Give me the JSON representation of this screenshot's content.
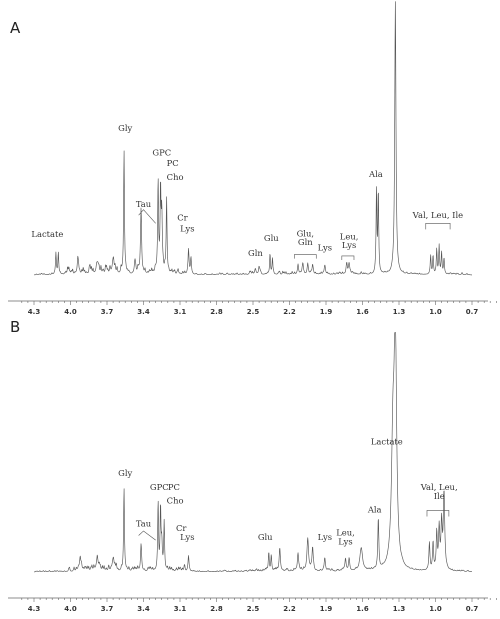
{
  "chart_data": [
    {
      "type": "line",
      "panel": "A",
      "xaxis": {
        "reversed": true,
        "ticks": [
          "4.3",
          "4.0",
          "3.7",
          "3.4",
          "3.1",
          "2.8",
          "2.5",
          "2.2",
          "1.9",
          "1.6",
          "1.3",
          "1.0",
          "0.7"
        ]
      },
      "peaks": [
        {
          "ppm": 1.33,
          "h": 1.0,
          "w": 0.006,
          "label": "Lactate"
        },
        {
          "ppm": 1.47,
          "h": 0.3,
          "w": 0.004
        },
        {
          "ppm": 1.485,
          "h": 0.31,
          "w": 0.004,
          "label": "Ala"
        },
        {
          "ppm": 3.56,
          "h": 0.46,
          "w": 0.004,
          "label": "Gly"
        },
        {
          "ppm": 3.28,
          "h": 0.34,
          "w": 0.004,
          "label": "GPC"
        },
        {
          "ppm": 3.26,
          "h": 0.3,
          "w": 0.004,
          "label": "PC"
        },
        {
          "ppm": 3.21,
          "h": 0.27,
          "w": 0.004,
          "label": "Cho"
        },
        {
          "ppm": 3.42,
          "h": 0.23,
          "w": 0.005
        },
        {
          "ppm": 3.25,
          "h": 0.21,
          "w": 0.005
        },
        {
          "ppm": 3.03,
          "h": 0.09,
          "w": 0.005,
          "label": "Cr"
        },
        {
          "ppm": 3.01,
          "h": 0.06,
          "w": 0.004
        },
        {
          "ppm": 4.12,
          "h": 0.08,
          "w": 0.004
        },
        {
          "ppm": 4.1,
          "h": 0.08,
          "w": 0.004
        },
        {
          "ppm": 3.94,
          "h": 0.05,
          "w": 0.006
        },
        {
          "ppm": 3.78,
          "h": 0.04,
          "w": 0.01
        },
        {
          "ppm": 3.65,
          "h": 0.045,
          "w": 0.01
        },
        {
          "ppm": 3.47,
          "h": 0.05,
          "w": 0.006
        },
        {
          "ppm": 2.48,
          "h": 0.02,
          "w": 0.006
        },
        {
          "ppm": 2.45,
          "h": 0.025,
          "w": 0.005
        },
        {
          "ppm": 2.36,
          "h": 0.07,
          "w": 0.004
        },
        {
          "ppm": 2.34,
          "h": 0.06,
          "w": 0.004
        },
        {
          "ppm": 2.13,
          "h": 0.035,
          "w": 0.005
        },
        {
          "ppm": 2.09,
          "h": 0.04,
          "w": 0.005
        },
        {
          "ppm": 2.05,
          "h": 0.04,
          "w": 0.005
        },
        {
          "ppm": 2.01,
          "h": 0.03,
          "w": 0.005
        },
        {
          "ppm": 1.91,
          "h": 0.03,
          "w": 0.006
        },
        {
          "ppm": 1.73,
          "h": 0.035,
          "w": 0.006
        },
        {
          "ppm": 1.71,
          "h": 0.04,
          "w": 0.006
        },
        {
          "ppm": 1.04,
          "h": 0.07,
          "w": 0.004
        },
        {
          "ppm": 1.02,
          "h": 0.07,
          "w": 0.004
        },
        {
          "ppm": 0.99,
          "h": 0.09,
          "w": 0.004
        },
        {
          "ppm": 0.97,
          "h": 0.1,
          "w": 0.004
        },
        {
          "ppm": 0.95,
          "h": 0.08,
          "w": 0.004
        },
        {
          "ppm": 0.93,
          "h": 0.06,
          "w": 0.004
        }
      ],
      "labels": [
        {
          "text": "Lactate",
          "ppm": 1.31,
          "h": 1.03
        },
        {
          "text": "Gly",
          "ppm": 3.55,
          "h": 0.53
        },
        {
          "text": "GPC",
          "ppm": 3.25,
          "h": 0.44
        },
        {
          "text": "PC",
          "ppm": 3.16,
          "h": 0.4
        },
        {
          "text": "Cho",
          "ppm": 3.14,
          "h": 0.35
        },
        {
          "text": "Tau",
          "ppm": 3.4,
          "h": 0.25
        },
        {
          "text": "Cr",
          "ppm": 3.08,
          "h": 0.2
        },
        {
          "text": "Lys",
          "ppm": 3.04,
          "h": 0.16
        },
        {
          "text": "Lactate",
          "ppm": 4.19,
          "h": 0.14
        },
        {
          "text": "Gln",
          "ppm": 2.48,
          "h": 0.07
        },
        {
          "text": "Glu",
          "ppm": 2.35,
          "h": 0.125
        },
        {
          "text": "Glu,",
          "ppm": 2.07,
          "h": 0.142
        },
        {
          "text": "Gln",
          "ppm": 2.07,
          "h": 0.11
        },
        {
          "text": "Lys",
          "ppm": 1.91,
          "h": 0.09
        },
        {
          "text": "Leu,",
          "ppm": 1.71,
          "h": 0.13
        },
        {
          "text": "Lys",
          "ppm": 1.71,
          "h": 0.1
        },
        {
          "text": "Ala",
          "ppm": 1.49,
          "h": 0.36
        },
        {
          "text": "Val, Leu, Ile",
          "ppm": 0.98,
          "h": 0.21
        }
      ]
    },
    {
      "type": "line",
      "panel": "B",
      "xaxis": {
        "reversed": true,
        "ticks": [
          "4.3",
          "4.0",
          "3.7",
          "3.4",
          "3.1",
          "2.8",
          "2.5",
          "2.2",
          "1.9",
          "1.6",
          "1.3",
          "1.0",
          "0.7"
        ]
      },
      "peaks": [
        {
          "ppm": 1.33,
          "h": 1.0,
          "w": 0.012
        },
        {
          "ppm": 1.35,
          "h": 0.52,
          "w": 0.014
        },
        {
          "ppm": 0.93,
          "h": 0.34,
          "w": 0.007
        },
        {
          "ppm": 0.95,
          "h": 0.2,
          "w": 0.006
        },
        {
          "ppm": 0.97,
          "h": 0.18,
          "w": 0.006
        },
        {
          "ppm": 0.99,
          "h": 0.16,
          "w": 0.005
        },
        {
          "ppm": 1.02,
          "h": 0.12,
          "w": 0.005
        },
        {
          "ppm": 1.05,
          "h": 0.12,
          "w": 0.005
        },
        {
          "ppm": 1.47,
          "h": 0.22,
          "w": 0.005,
          "label": "Ala"
        },
        {
          "ppm": 1.61,
          "h": 0.1,
          "w": 0.012
        },
        {
          "ppm": 3.56,
          "h": 0.36,
          "w": 0.004,
          "label": "Gly"
        },
        {
          "ppm": 3.28,
          "h": 0.3,
          "w": 0.004
        },
        {
          "ppm": 3.26,
          "h": 0.27,
          "w": 0.004
        },
        {
          "ppm": 3.23,
          "h": 0.21,
          "w": 0.004
        },
        {
          "ppm": 3.42,
          "h": 0.12,
          "w": 0.005
        },
        {
          "ppm": 3.25,
          "h": 0.12,
          "w": 0.005
        },
        {
          "ppm": 3.03,
          "h": 0.07,
          "w": 0.005
        },
        {
          "ppm": 3.65,
          "h": 0.05,
          "w": 0.01
        },
        {
          "ppm": 3.78,
          "h": 0.045,
          "w": 0.012
        },
        {
          "ppm": 3.92,
          "h": 0.04,
          "w": 0.01
        },
        {
          "ppm": 2.37,
          "h": 0.08,
          "w": 0.004
        },
        {
          "ppm": 2.35,
          "h": 0.07,
          "w": 0.004
        },
        {
          "ppm": 2.28,
          "h": 0.1,
          "w": 0.006
        },
        {
          "ppm": 2.13,
          "h": 0.08,
          "w": 0.006
        },
        {
          "ppm": 2.05,
          "h": 0.14,
          "w": 0.008
        },
        {
          "ppm": 2.01,
          "h": 0.1,
          "w": 0.006
        },
        {
          "ppm": 1.91,
          "h": 0.06,
          "w": 0.006
        },
        {
          "ppm": 1.74,
          "h": 0.05,
          "w": 0.006
        },
        {
          "ppm": 1.71,
          "h": 0.05,
          "w": 0.006
        }
      ],
      "labels": [
        {
          "text": "Lactate",
          "ppm": 1.4,
          "h": 0.56
        },
        {
          "text": "Gly",
          "ppm": 3.55,
          "h": 0.42
        },
        {
          "text": "GPC",
          "ppm": 3.27,
          "h": 0.36
        },
        {
          "text": "PC",
          "ppm": 3.15,
          "h": 0.36
        },
        {
          "text": "Cho",
          "ppm": 3.14,
          "h": 0.3
        },
        {
          "text": "Tau",
          "ppm": 3.4,
          "h": 0.2
        },
        {
          "text": "Cr",
          "ppm": 3.09,
          "h": 0.18
        },
        {
          "text": "Lys",
          "ppm": 3.04,
          "h": 0.14
        },
        {
          "text": "Glu",
          "ppm": 2.4,
          "h": 0.14
        },
        {
          "text": "Lys",
          "ppm": 1.91,
          "h": 0.14
        },
        {
          "text": "Leu,",
          "ppm": 1.74,
          "h": 0.16
        },
        {
          "text": "Lys",
          "ppm": 1.74,
          "h": 0.12
        },
        {
          "text": "Ala",
          "ppm": 1.5,
          "h": 0.26
        },
        {
          "text": "Val, Leu,",
          "ppm": 0.97,
          "h": 0.36
        },
        {
          "text": "Ile",
          "ppm": 0.97,
          "h": 0.32
        }
      ]
    }
  ],
  "panels": {
    "a_letter": "A",
    "b_letter": "B"
  }
}
